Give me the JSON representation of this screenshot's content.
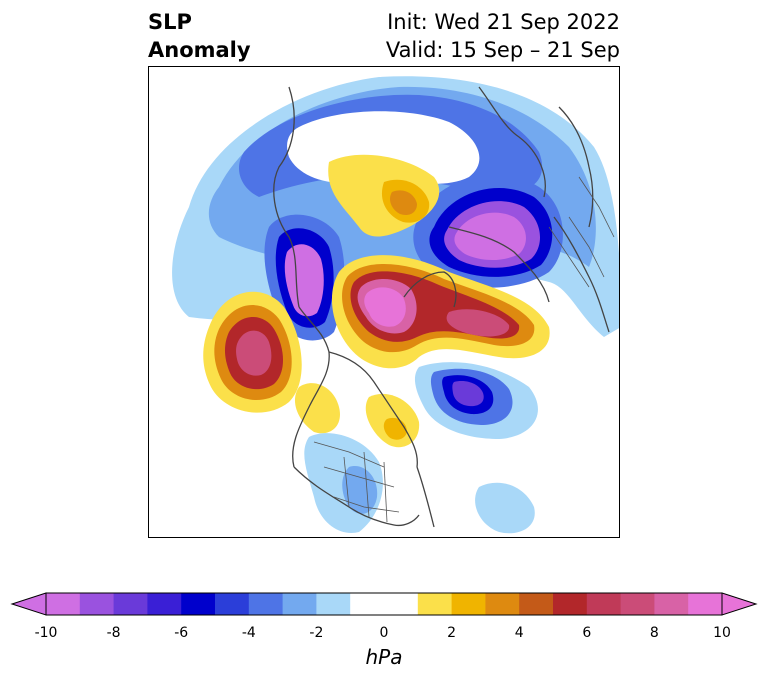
{
  "title": {
    "left_line1": "SLP",
    "left_line2": "Anomaly",
    "right_line1": "Init: Wed 21 Sep 2022",
    "right_line2": "Valid: 15 Sep – 21 Sep"
  },
  "colorbar": {
    "unit": "hPa",
    "ticks": [
      "-10",
      "-8",
      "-6",
      "-4",
      "-2",
      "0",
      "2",
      "4",
      "6",
      "8",
      "10"
    ],
    "colors": [
      "#cf6fe3",
      "#9a52df",
      "#6a3ad9",
      "#3a1fd6",
      "#0000cc",
      "#2b3ed9",
      "#4e74e6",
      "#73a9ef",
      "#a9d8f8",
      "#ffffff",
      "#ffffff",
      "#fbe04a",
      "#f0b400",
      "#de8a10",
      "#c45a18",
      "#b2272a",
      "#c03a58",
      "#cb4c78",
      "#d862a6",
      "#e773d8"
    ]
  }
}
